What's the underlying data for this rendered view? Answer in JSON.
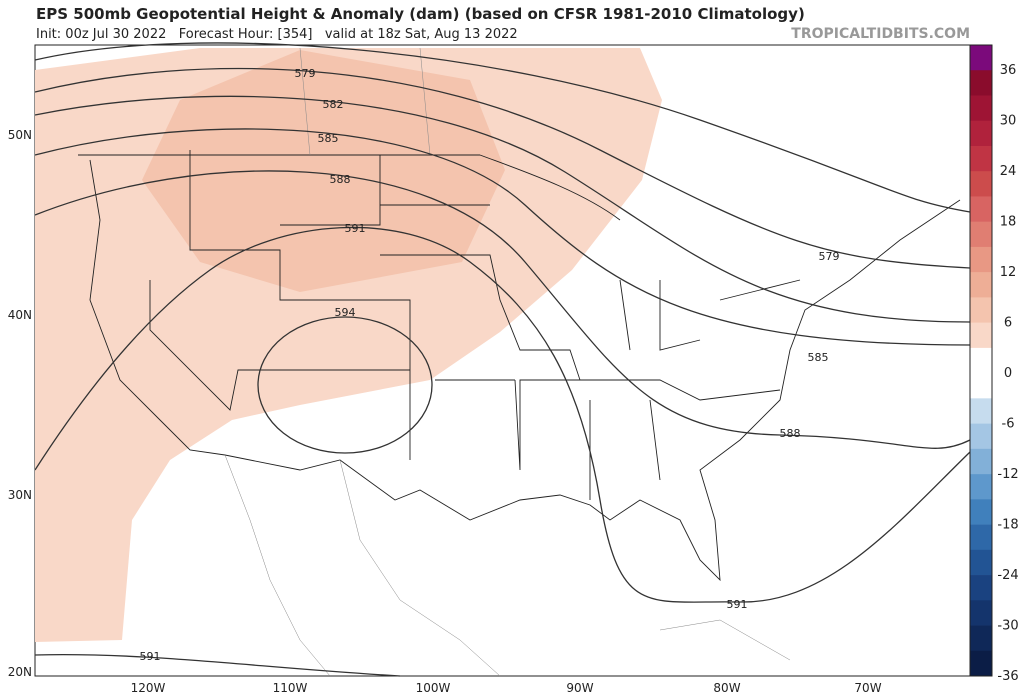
{
  "header": {
    "title": "EPS 500mb Geopotential Height & Anomaly (dam) (based on CFSR 1981-2010 Climatology)",
    "subtitle": "Init: 00z Jul 30 2022   Forecast Hour: [354]   valid at 18z Sat, Aug 13 2022",
    "watermark": "TROPICALTIDBITS.COM"
  },
  "map": {
    "lat_labels": [
      "50N",
      "40N",
      "30N",
      "20N"
    ],
    "lon_labels": [
      "120W",
      "110W",
      "100W",
      "90W",
      "80W",
      "70W"
    ],
    "contour_labels": [
      "579",
      "582",
      "585",
      "588",
      "591",
      "594",
      "579",
      "585",
      "588",
      "591",
      "591"
    ]
  },
  "colorbar": {
    "ticks": [
      36,
      30,
      24,
      18,
      12,
      6,
      0,
      -6,
      -12,
      -18,
      -24,
      -30,
      -36
    ],
    "colors": [
      "#7b0a7b",
      "#8a0c2c",
      "#9e1434",
      "#b0223c",
      "#c03444",
      "#cc4c4c",
      "#d86462",
      "#e07e72",
      "#e89884",
      "#eeae96",
      "#f4c4ae",
      "#f9d8c8",
      "#ffffff",
      "#ffffff",
      "#c6dcee",
      "#a4c6e4",
      "#82b0d8",
      "#5e98cc",
      "#4080bc",
      "#2e68a8",
      "#225494",
      "#1a4280",
      "#14346c",
      "#0f2858",
      "#0b1d46"
    ]
  }
}
